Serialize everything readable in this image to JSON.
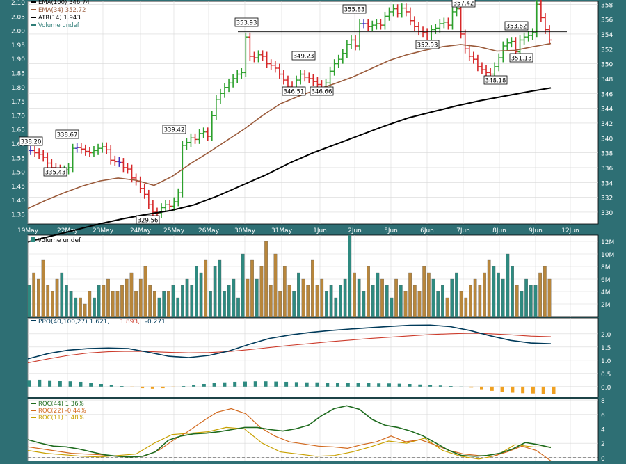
{
  "chart_data": {
    "type": "ohlc",
    "panels": {
      "price": {
        "legend": [
          {
            "label": "EMA(100) 346.74",
            "color": "#000000"
          },
          {
            "label": "EMA(34) 352.72",
            "color": "#9a5a3a"
          },
          {
            "label": "ATR(14) 1.943",
            "color": "#000000"
          },
          {
            "label": "Volume undef",
            "color": "#2e7d77"
          }
        ],
        "left_axis_ticks": [
          "2.10",
          "2.05",
          "2.00",
          "1.95",
          "1.90",
          "1.85",
          "1.80",
          "1.75",
          "1.70",
          "1.65",
          "1.60",
          "1.55",
          "1.50",
          "1.45",
          "1.40",
          "1.35"
        ],
        "right_axis_ticks": [
          "358",
          "356",
          "354",
          "352",
          "350",
          "348",
          "346",
          "344",
          "342",
          "340",
          "338",
          "336",
          "334",
          "332",
          "330"
        ],
        "right_axis_range": [
          328.4,
          358.4
        ],
        "x_labels": [
          "19May",
          "22May",
          "23May",
          "24May",
          "25May",
          "26May",
          "30May",
          "31May",
          "1Jun",
          "2Jun",
          "5Jun",
          "6Jun",
          "7Jun",
          "8Jun",
          "9Jun",
          "12Jun"
        ],
        "price_labels": [
          "338.20",
          "338.67",
          "335.43",
          "339.42",
          "329.56",
          "353.93",
          "349.23",
          "346.51",
          "346.66",
          "355.83",
          "352.93",
          "357.42",
          "353.62",
          "351.13",
          "348.18"
        ],
        "reference_line": 354.3,
        "last_close": 353.2,
        "colors": {
          "up": "#2ca02c",
          "down": "#d62728",
          "neutral": "#3b2dbf",
          "ema100": "#000000",
          "ema34": "#9a5a3a"
        }
      },
      "volume": {
        "legend": "Volume undef",
        "axis_ticks": [
          "12M",
          "10M",
          "8M",
          "6M",
          "4M",
          "2M"
        ],
        "range": [
          0,
          13
        ],
        "unit": "M",
        "values": [
          5,
          7,
          6,
          9,
          5,
          4,
          6,
          7,
          5,
          4,
          3,
          3,
          2,
          4,
          3,
          5,
          5,
          6,
          4,
          4,
          5,
          6,
          7,
          4,
          6,
          8,
          5,
          4,
          3,
          4,
          4,
          5,
          3,
          5,
          6,
          5,
          8,
          7,
          9,
          4,
          8,
          9,
          4,
          5,
          6,
          3,
          10,
          6,
          9,
          6,
          8,
          12,
          5,
          10,
          4,
          8,
          5,
          4,
          7,
          6,
          5,
          9,
          5,
          6,
          4,
          5,
          3,
          5,
          6,
          13,
          7,
          6,
          4,
          8,
          5,
          7,
          6,
          5,
          3,
          6,
          5,
          4,
          7,
          5,
          4,
          8,
          7,
          6,
          4,
          5,
          3,
          6,
          7,
          4,
          3,
          5,
          6,
          5,
          7,
          9,
          8,
          7,
          6,
          10,
          8,
          5,
          4,
          6,
          5,
          5,
          7,
          8,
          6
        ]
      },
      "ppo": {
        "legend": [
          {
            "label": "PPO(40,100,27) 1.621,",
            "color": "#003a5a"
          },
          {
            "label": "1.893,",
            "color": "#cc3b2b"
          },
          {
            "label": "-0.271",
            "color": "#003a5a"
          }
        ],
        "axis_ticks": [
          "2.0",
          "1.5",
          "1.0",
          "0.5",
          "0.0"
        ],
        "range": [
          -0.4,
          2.6
        ],
        "ppo": [
          1.05,
          1.25,
          1.38,
          1.44,
          1.46,
          1.44,
          1.3,
          1.15,
          1.1,
          1.18,
          1.35,
          1.6,
          1.82,
          1.95,
          2.05,
          2.12,
          2.18,
          2.23,
          2.28,
          2.32,
          2.33,
          2.27,
          2.12,
          1.92,
          1.75,
          1.65,
          1.62
        ],
        "signal": [
          0.9,
          1.05,
          1.18,
          1.27,
          1.32,
          1.34,
          1.33,
          1.3,
          1.28,
          1.29,
          1.33,
          1.4,
          1.48,
          1.56,
          1.63,
          1.7,
          1.76,
          1.82,
          1.87,
          1.92,
          1.97,
          2.0,
          2.02,
          2.0,
          1.96,
          1.91,
          1.89
        ],
        "histogram": [
          0.25,
          0.26,
          0.24,
          0.22,
          0.2,
          0.18,
          0.14,
          0.1,
          0.06,
          0.02,
          -0.02,
          -0.06,
          -0.08,
          -0.06,
          -0.02,
          0.02,
          0.06,
          0.1,
          0.13,
          0.16,
          0.18,
          0.19,
          0.2,
          0.2,
          0.19,
          0.18,
          0.17,
          0.16,
          0.16,
          0.15,
          0.15,
          0.14,
          0.13,
          0.13,
          0.12,
          0.12,
          0.11,
          0.1,
          0.08,
          0.06,
          0.04,
          0.02,
          0.0,
          -0.04,
          -0.1,
          -0.16,
          -0.2,
          -0.23,
          -0.25,
          -0.26,
          -0.27,
          -0.27
        ]
      },
      "roc": {
        "legend": [
          {
            "label": "ROC(44) 1.36%",
            "color": "#1e6b1e"
          },
          {
            "label": "ROC(22) -0.44%",
            "color": "#d2691e"
          },
          {
            "label": "ROC(11) 1.48%",
            "color": "#c8a000"
          }
        ],
        "axis_ticks": [
          "8",
          "6",
          "4",
          "2",
          "0"
        ],
        "range": [
          -0.5,
          8.2
        ],
        "roc44": [
          2.5,
          2.0,
          1.6,
          1.5,
          1.2,
          0.8,
          0.4,
          0.2,
          0.1,
          0.2,
          0.8,
          2.4,
          3.0,
          3.3,
          3.4,
          3.6,
          3.9,
          4.2,
          4.2,
          3.9,
          3.7,
          4.0,
          4.5,
          5.8,
          6.8,
          7.2,
          6.7,
          5.3,
          4.5,
          4.2,
          3.7,
          3.0,
          2.0,
          1.0,
          0.3,
          0.2,
          0.3,
          0.6,
          1.2,
          2.1,
          1.8,
          1.4
        ],
        "roc22": [
          1.5,
          1.2,
          0.9,
          0.6,
          0.5,
          0.4,
          0.2,
          0.1,
          0.2,
          1.0,
          2.4,
          3.6,
          5.0,
          6.3,
          6.8,
          6.1,
          4.2,
          3.0,
          2.2,
          1.9,
          1.6,
          1.5,
          1.3,
          1.8,
          2.2,
          3.0,
          2.2,
          2.5,
          1.8,
          1.0,
          0.5,
          0.3,
          0.2,
          0.8,
          1.6,
          1.0,
          -0.44
        ],
        "roc11": [
          1.0,
          0.6,
          0.4,
          0.2,
          0.1,
          0.3,
          0.5,
          2.0,
          3.2,
          3.4,
          3.6,
          4.2,
          4.0,
          2.0,
          0.8,
          0.5,
          0.2,
          0.3,
          0.8,
          1.5,
          2.3,
          2.0,
          2.7,
          1.0,
          0.2,
          -0.2,
          0.3,
          1.8,
          1.5,
          1.48
        ]
      }
    }
  }
}
